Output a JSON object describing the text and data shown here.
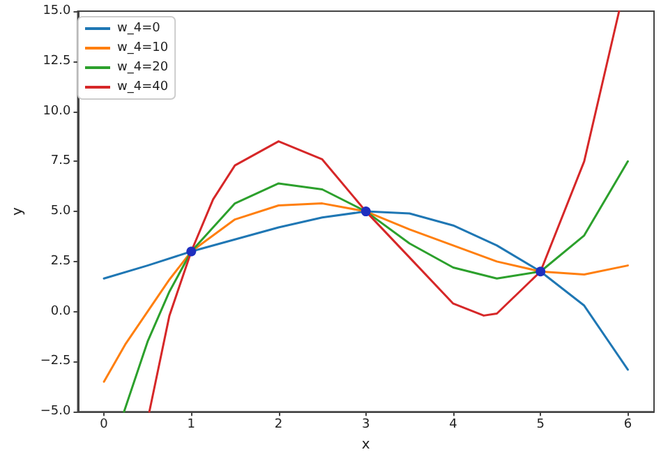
{
  "chart_data": {
    "type": "line",
    "xlabel": "x",
    "ylabel": "y",
    "legend": "top left",
    "grid": false,
    "marker": "none",
    "line_style": "solid",
    "xlim": [
      -0.3,
      6.3
    ],
    "xticks": [
      0,
      1,
      2,
      3,
      4,
      5,
      6
    ],
    "ylim": [
      -5,
      15
    ],
    "yticks": [
      {
        "value": -5,
        "label": "−5.0"
      },
      {
        "value": -2.5,
        "label": "−2.5"
      },
      {
        "value": 0,
        "label": "0.0"
      },
      {
        "value": 2.5,
        "label": "2.5"
      },
      {
        "value": 5,
        "label": "5.0"
      },
      {
        "value": 7.5,
        "label": "7.5"
      },
      {
        "value": 10,
        "label": "10.0"
      },
      {
        "value": 12.5,
        "label": "12.5"
      },
      {
        "value": 15,
        "label": "15.0"
      }
    ],
    "series": [
      {
        "name": "w_4=0",
        "color": "#1f77b4",
        "x": [
          0,
          0.5,
          1,
          1.5,
          2,
          2.5,
          3,
          3.5,
          4,
          4.5,
          5,
          5.5,
          6
        ],
        "values": [
          1.65,
          2.3,
          3,
          3.6,
          4.2,
          4.7,
          5,
          4.9,
          4.3,
          3.3,
          2,
          0.3,
          -2.9
        ]
      },
      {
        "name": "w_4=10",
        "color": "#ff7f0e",
        "x": [
          0,
          0.25,
          0.5,
          0.75,
          1,
          1.5,
          2,
          2.5,
          3,
          3.5,
          4,
          4.5,
          5,
          5.5,
          6
        ],
        "values": [
          -3.5,
          -1.6,
          0,
          1.6,
          3,
          4.6,
          5.3,
          5.4,
          5,
          4.1,
          3.3,
          2.5,
          2,
          1.85,
          2.3
        ]
      },
      {
        "name": "w_4=20",
        "color": "#2ca02c",
        "x": [
          0.23,
          0.5,
          0.75,
          1,
          1.5,
          2,
          2.5,
          3,
          3.5,
          4,
          4.5,
          5,
          5.5,
          6
        ],
        "values": [
          -5,
          -1.5,
          1,
          3,
          5.4,
          6.4,
          6.1,
          5,
          3.4,
          2.2,
          1.65,
          2,
          3.8,
          7.5
        ]
      },
      {
        "name": "w_4=40",
        "color": "#d62728",
        "x": [
          0.52,
          0.75,
          1,
          1.25,
          1.5,
          2,
          2.5,
          3,
          3.5,
          4,
          4.35,
          4.5,
          5,
          5.5,
          5.9
        ],
        "values": [
          -5,
          -0.2,
          3,
          5.6,
          7.3,
          8.5,
          7.6,
          5,
          2.7,
          0.4,
          -0.2,
          -0.1,
          2,
          7.5,
          15
        ]
      },
      {
        "type": "scatter",
        "marker": "circle",
        "color": "#1f2fbf",
        "x": [
          1,
          3,
          5
        ],
        "values": [
          3,
          5,
          2
        ]
      }
    ]
  }
}
